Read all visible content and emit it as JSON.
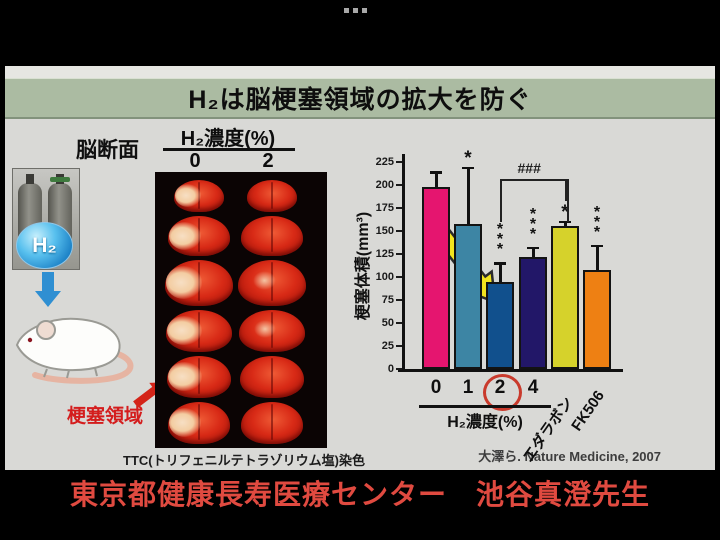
{
  "icons": {
    "more_options": "three-dots-menu",
    "h2_flow_arrow": "blue-down-arrow",
    "infarct_pointer": "red-up-right-arrow",
    "chart_highlight": "yellow-diagonal-arrow"
  },
  "slide": {
    "title": "H₂は脳梗塞領域の拡大を防ぐ",
    "left": {
      "brain_section_label": "脳断面",
      "h2_badge": "H₂",
      "infarct_area_label": "梗塞領域"
    },
    "slice_panel": {
      "heading": "H₂濃度(%)",
      "column_labels": [
        "0",
        "2"
      ]
    },
    "ttc_caption": "TTC(トリフェニルテトラゾリウム塩)染色",
    "citation": "大澤ら. Nature Medicine, 2007"
  },
  "chart_data": {
    "type": "bar",
    "title": "",
    "ylabel": "梗塞体積(mm³)",
    "group_xlabel": "H₂濃度(%)",
    "grouped_categories_count": 4,
    "ylim": [
      0,
      235
    ],
    "yticks": [
      0,
      25,
      50,
      75,
      100,
      125,
      150,
      175,
      200,
      225
    ],
    "categories": [
      "0",
      "1",
      "2",
      "4",
      "エダラボン",
      "FK506"
    ],
    "values": [
      198,
      158,
      95,
      122,
      155,
      108
    ],
    "error_upper": [
      215,
      220,
      116,
      133,
      161,
      135
    ],
    "significance": [
      "",
      "*",
      "***",
      "***",
      "*",
      "***"
    ],
    "comparison_bracket": {
      "label": "###",
      "from_index": 2,
      "to_index": 4
    },
    "highlight_circle_category": "2",
    "bar_colors": [
      "#e5156f",
      "#3d85a4",
      "#11508d",
      "#221768",
      "#d6d22b",
      "#ee8013"
    ],
    "grid": false,
    "legend": "none"
  },
  "overlay": {
    "credit_caption": "東京都健康長寿医療センター　池谷真澄先生"
  }
}
